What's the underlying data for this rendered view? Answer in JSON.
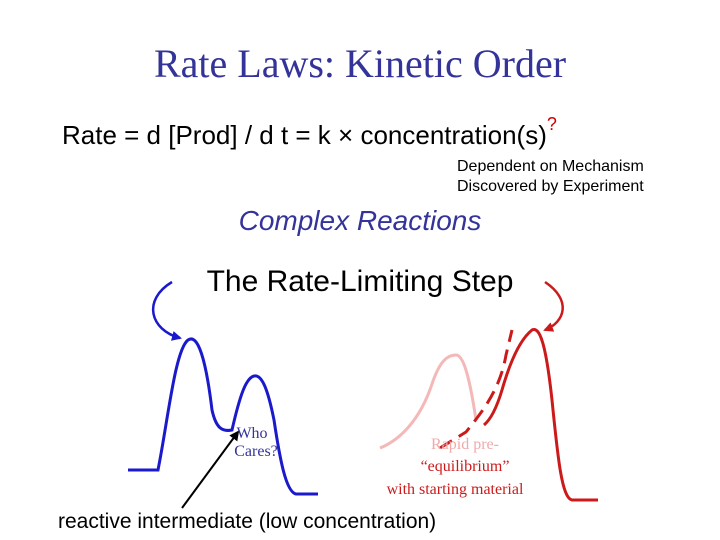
{
  "title": "Rate Laws: Kinetic Order",
  "equation": {
    "text": "Rate = d [Prod] / d t  =  k × concentration(s)",
    "superscript": "?"
  },
  "notes": {
    "line1": "Dependent on Mechanism",
    "line2": "Discovered by Experiment"
  },
  "complex_reactions": "Complex Reactions",
  "rate_limiting_step": "The Rate-Limiting Step",
  "left_diagram": {
    "label_line1": "Who",
    "label_line2": "Cares?",
    "color": "#1a1acc"
  },
  "right_diagram": {
    "label_line1": "Rapid pre-",
    "label_line2": "“equilibrium”",
    "label_line3": "with starting material",
    "color": "#cc1a1a",
    "faint_color": "#f4b8b8"
  },
  "bottom_caption": "reactive intermediate  (low concentration)"
}
